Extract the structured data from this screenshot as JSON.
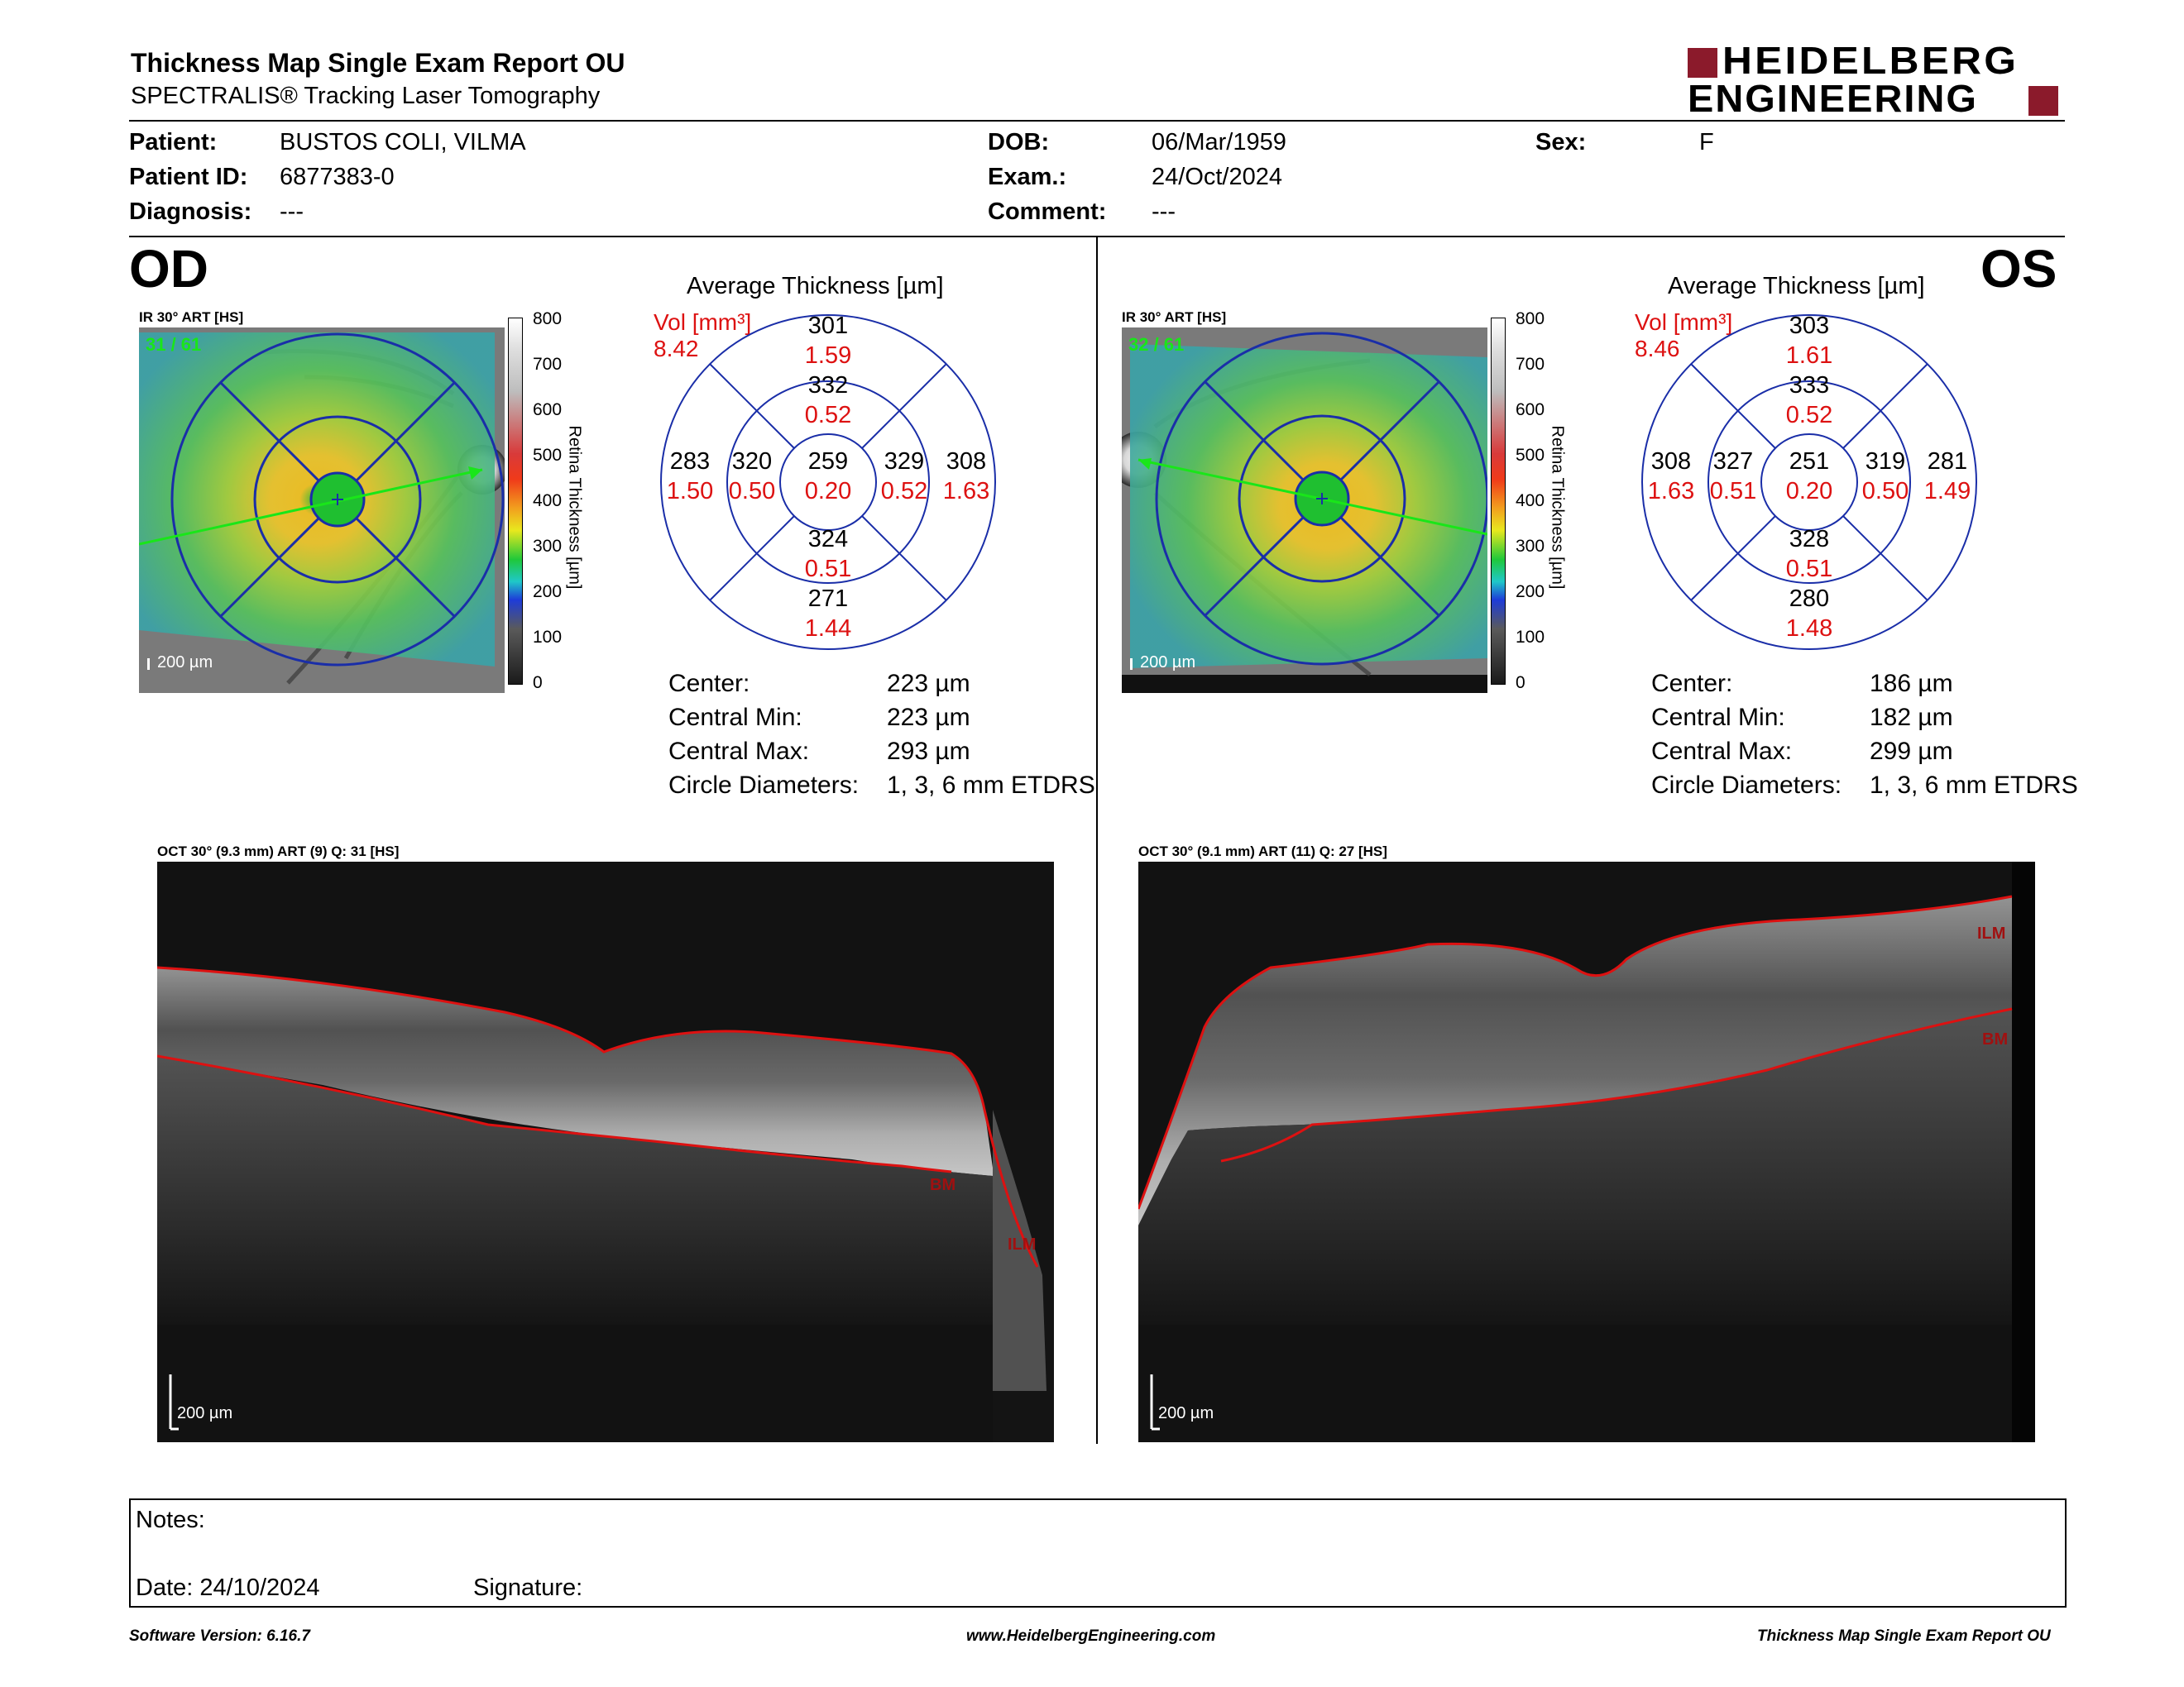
{
  "header": {
    "title": "Thickness Map Single Exam Report OU",
    "subtitle": "SPECTRALIS® Tracking Laser Tomography",
    "logo_line1": "HEIDELBERG",
    "logo_line2": "ENGINEERING"
  },
  "patient": {
    "patient_label": "Patient:",
    "patient_value": "BUSTOS COLI, VILMA",
    "id_label": "Patient ID:",
    "id_value": "6877383-0",
    "diagnosis_label": "Diagnosis:",
    "diagnosis_value": "---",
    "dob_label": "DOB:",
    "dob_value": "06/Mar/1959",
    "exam_label": "Exam.:",
    "exam_value": "24/Oct/2024",
    "comment_label": "Comment:",
    "comment_value": "---",
    "sex_label": "Sex:",
    "sex_value": "F"
  },
  "od": {
    "eye_label": "OD",
    "ir_label": "IR 30° ART [HS]",
    "frame_count": "31 / 61",
    "scale_label": "200 µm",
    "colorbar_title": "Retina Thickness [µm]",
    "colorbar_ticks": [
      "800",
      "700",
      "600",
      "500",
      "400",
      "300",
      "200",
      "100",
      "0"
    ],
    "avg_title": "Average Thickness [µm]",
    "vol_label": "Vol [mm³]",
    "vol_value": "8.42",
    "grid": {
      "center": {
        "t": "259",
        "v": "0.20"
      },
      "inner_sup": {
        "t": "332",
        "v": "0.52"
      },
      "inner_inf": {
        "t": "324",
        "v": "0.51"
      },
      "inner_left": {
        "t": "320",
        "v": "0.50"
      },
      "inner_right": {
        "t": "329",
        "v": "0.52"
      },
      "outer_sup": {
        "t": "301",
        "v": "1.59"
      },
      "outer_inf": {
        "t": "271",
        "v": "1.44"
      },
      "outer_left": {
        "t": "283",
        "v": "1.50"
      },
      "outer_right": {
        "t": "308",
        "v": "1.63"
      }
    },
    "stats": {
      "center_label": "Center:",
      "center_value": "223 µm",
      "min_label": "Central Min:",
      "min_value": "223 µm",
      "max_label": "Central Max:",
      "max_value": "293 µm",
      "diam_label": "Circle Diameters:",
      "diam_value": "1, 3, 6 mm ETDRS"
    },
    "oct_label": "OCT 30° (9.3 mm) ART (9) Q: 31 [HS]",
    "oct_scale": "200 µm",
    "layer_bm": "BM",
    "layer_ilm": "ILM"
  },
  "os": {
    "eye_label": "OS",
    "ir_label": "IR 30° ART [HS]",
    "frame_count": "32 / 61",
    "scale_label": "200 µm",
    "colorbar_title": "Retina Thickness [µm]",
    "colorbar_ticks": [
      "800",
      "700",
      "600",
      "500",
      "400",
      "300",
      "200",
      "100",
      "0"
    ],
    "avg_title": "Average Thickness [µm]",
    "vol_label": "Vol [mm³]",
    "vol_value": "8.46",
    "grid": {
      "center": {
        "t": "251",
        "v": "0.20"
      },
      "inner_sup": {
        "t": "333",
        "v": "0.52"
      },
      "inner_inf": {
        "t": "328",
        "v": "0.51"
      },
      "inner_left": {
        "t": "327",
        "v": "0.51"
      },
      "inner_right": {
        "t": "319",
        "v": "0.50"
      },
      "outer_sup": {
        "t": "303",
        "v": "1.61"
      },
      "outer_inf": {
        "t": "280",
        "v": "1.48"
      },
      "outer_left": {
        "t": "308",
        "v": "1.63"
      },
      "outer_right": {
        "t": "281",
        "v": "1.49"
      }
    },
    "stats": {
      "center_label": "Center:",
      "center_value": "186 µm",
      "min_label": "Central Min:",
      "min_value": "182 µm",
      "max_label": "Central Max:",
      "max_value": "299 µm",
      "diam_label": "Circle Diameters:",
      "diam_value": "1, 3, 6 mm ETDRS"
    },
    "oct_label": "OCT 30° (9.1 mm) ART (11) Q: 27 [HS]",
    "oct_scale": "200 µm",
    "layer_ilm": "ILM",
    "layer_bm": "BM"
  },
  "notes": {
    "notes_label": "Notes:",
    "date_label": "Date: 24/10/2024",
    "signature_label": "Signature:"
  },
  "footer": {
    "software": "Software Version: 6.16.7",
    "website": "www.HeidelbergEngineering.com",
    "report": "Thickness Map Single Exam Report OU"
  },
  "colors": {
    "brand_red": "#8b1a2b",
    "value_red": "#dd1111",
    "grid_blue": "#1a2ea8",
    "scan_green": "#19e619"
  }
}
